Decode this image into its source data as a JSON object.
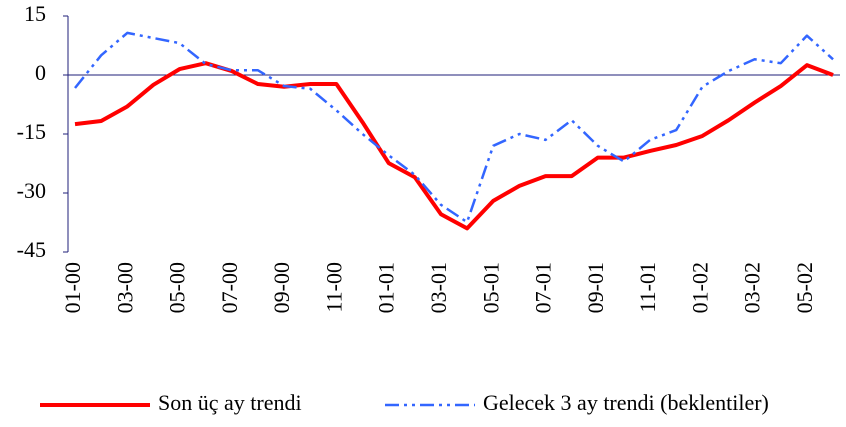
{
  "chart_data": {
    "type": "line",
    "categories": [
      "01-00",
      null,
      "03-00",
      null,
      "05-00",
      null,
      "07-00",
      null,
      "09-00",
      null,
      "11-00",
      null,
      "01-01",
      null,
      "03-01",
      null,
      "05-01",
      null,
      "07-01",
      null,
      "09-01",
      null,
      "11-01",
      null,
      "01-02",
      null,
      "03-02",
      null,
      "05-02",
      null
    ],
    "series": [
      {
        "name": "Son üç ay trendi",
        "color": "#ff0000",
        "style": "solid",
        "values": [
          -12.5,
          -11.7,
          -8,
          -2.5,
          1.5,
          3,
          1,
          -2.3,
          -3,
          -2.3,
          -2.3,
          -12,
          -22.4,
          -26,
          -35.4,
          -39,
          -32,
          -28.2,
          -25.7,
          -25.7,
          -21,
          -21,
          -19.3,
          -17.8,
          -15.5,
          -11.5,
          -7,
          -2.8,
          2.5,
          0
        ]
      },
      {
        "name": "Gelecek 3 ay trendi (beklentiler)",
        "color": "#3366ff",
        "style": "dash-dot-dot",
        "values": [
          -3.3,
          5,
          10.7,
          9.4,
          8.1,
          2.8,
          1.2,
          1.2,
          -2.8,
          -3.5,
          -9,
          -15,
          -20.4,
          -25.4,
          -33,
          -37.4,
          -18,
          -15,
          -16.5,
          -11.5,
          -18,
          -22,
          -16.5,
          -14,
          -3,
          1,
          4,
          3,
          10,
          4
        ]
      }
    ],
    "ylim": [
      -45,
      15
    ],
    "yticks": [
      -45,
      -30,
      -15,
      0,
      15
    ],
    "legend": "bottom"
  }
}
